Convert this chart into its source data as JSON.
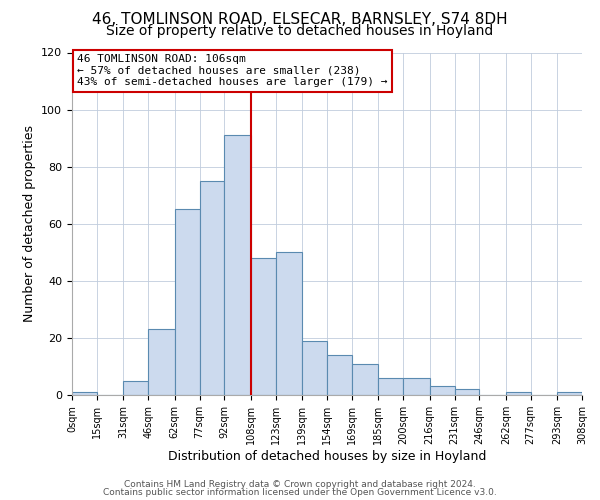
{
  "title": "46, TOMLINSON ROAD, ELSECAR, BARNSLEY, S74 8DH",
  "subtitle": "Size of property relative to detached houses in Hoyland",
  "xlabel": "Distribution of detached houses by size in Hoyland",
  "ylabel": "Number of detached properties",
  "bin_edges": [
    0,
    15,
    31,
    46,
    62,
    77,
    92,
    108,
    123,
    139,
    154,
    169,
    185,
    200,
    216,
    231,
    246,
    262,
    277,
    293,
    308
  ],
  "bin_counts": [
    1,
    0,
    5,
    23,
    65,
    75,
    91,
    48,
    50,
    19,
    14,
    11,
    6,
    6,
    3,
    2,
    0,
    1,
    0,
    1
  ],
  "bar_color": "#ccdaee",
  "bar_edge_color": "#5a8ab0",
  "vline_x": 108,
  "vline_color": "#cc0000",
  "annotation_line1": "46 TOMLINSON ROAD: 106sqm",
  "annotation_line2": "← 57% of detached houses are smaller (238)",
  "annotation_line3": "43% of semi-detached houses are larger (179) →",
  "annotation_box_color": "white",
  "annotation_box_edge_color": "#cc0000",
  "ylim": [
    0,
    120
  ],
  "yticks": [
    0,
    20,
    40,
    60,
    80,
    100,
    120
  ],
  "tick_labels": [
    "0sqm",
    "15sqm",
    "31sqm",
    "46sqm",
    "62sqm",
    "77sqm",
    "92sqm",
    "108sqm",
    "123sqm",
    "139sqm",
    "154sqm",
    "169sqm",
    "185sqm",
    "200sqm",
    "216sqm",
    "231sqm",
    "246sqm",
    "262sqm",
    "277sqm",
    "293sqm",
    "308sqm"
  ],
  "footer1": "Contains HM Land Registry data © Crown copyright and database right 2024.",
  "footer2": "Contains public sector information licensed under the Open Government Licence v3.0.",
  "background_color": "#ffffff",
  "grid_color": "#c0ccdd",
  "title_fontsize": 11,
  "subtitle_fontsize": 10,
  "xlabel_fontsize": 9,
  "ylabel_fontsize": 9,
  "footer_fontsize": 6.5
}
